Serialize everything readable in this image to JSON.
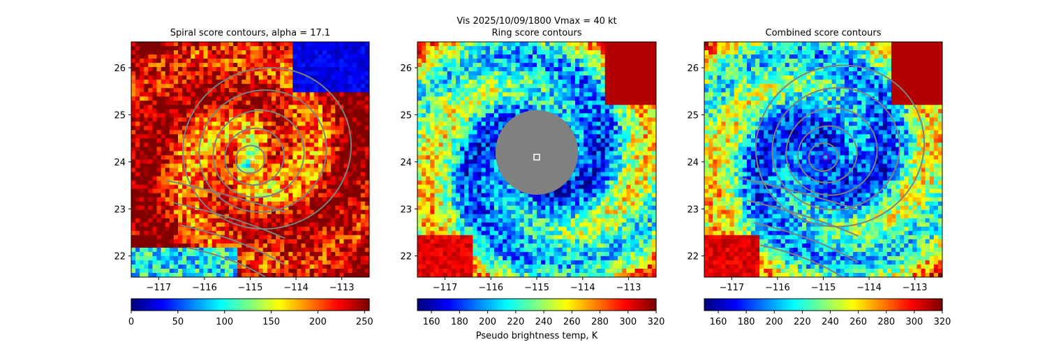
{
  "figure": {
    "suptitle": "Vis  2025/10/09/1800    Vmax = 40 kt"
  },
  "chart_data": [
    {
      "type": "heatmap",
      "title": "Spiral score contours, alpha = 17.1",
      "xlabel": "",
      "ylabel": "",
      "xlim": [
        -117.6,
        -112.4
      ],
      "ylim": [
        21.55,
        26.55
      ],
      "xticks": [
        -117,
        -116,
        -115,
        -114,
        -113
      ],
      "xtick_labels": [
        "−117",
        "−116",
        "−115",
        "−114",
        "−113"
      ],
      "yticks": [
        22,
        23,
        24,
        25,
        26
      ],
      "ytick_labels": [
        "22",
        "23",
        "24",
        "25",
        "26"
      ],
      "colormap": "jet",
      "colorbar": {
        "range": [
          0,
          255
        ],
        "ticks": [
          0,
          50,
          100,
          150,
          200,
          250
        ],
        "tick_labels": [
          "0",
          "50",
          "100",
          "150",
          "200",
          "250"
        ],
        "label": "",
        "reversed": true
      },
      "center": [
        -115.0,
        24.05
      ],
      "marker": {
        "type": "plus",
        "lon": -114.95,
        "lat": 24.05,
        "color": "#ffffff"
      },
      "contour_color": "#808080"
    },
    {
      "type": "heatmap",
      "title": "Ring score contours",
      "xlabel": "",
      "ylabel": "",
      "xlim": [
        -117.6,
        -112.4
      ],
      "ylim": [
        21.55,
        26.55
      ],
      "xticks": [
        -117,
        -116,
        -115,
        -114,
        -113
      ],
      "xtick_labels": [
        "−117",
        "−116",
        "−115",
        "−114",
        "−113"
      ],
      "yticks": [
        22,
        23,
        24,
        25,
        26
      ],
      "ytick_labels": [
        "22",
        "23",
        "24",
        "25",
        "26"
      ],
      "colormap": "jet",
      "colorbar": {
        "range": [
          150,
          320
        ],
        "ticks": [
          160,
          180,
          200,
          220,
          240,
          260,
          280,
          300,
          320
        ],
        "tick_labels": [
          "160",
          "180",
          "200",
          "220",
          "240",
          "260",
          "280",
          "300",
          "320"
        ],
        "label": "Pseudo brightness temp, K",
        "reversed": true
      },
      "center": [
        -115.0,
        24.05
      ],
      "masked_region": {
        "lon": -115.0,
        "lat": 24.2,
        "radius_deg": 0.9,
        "color": "#808080"
      },
      "marker": {
        "type": "square",
        "lon": -115.0,
        "lat": 24.1,
        "color": "#ffffff"
      }
    },
    {
      "type": "heatmap",
      "title": "Combined score contours",
      "xlabel": "",
      "ylabel": "",
      "xlim": [
        -117.6,
        -112.4
      ],
      "ylim": [
        21.55,
        26.55
      ],
      "xticks": [
        -117,
        -116,
        -115,
        -114,
        -113
      ],
      "xtick_labels": [
        "−117",
        "−116",
        "−115",
        "−114",
        "−113"
      ],
      "yticks": [
        22,
        23,
        24,
        25,
        26
      ],
      "ytick_labels": [
        "22",
        "23",
        "24",
        "25",
        "26"
      ],
      "colormap": "jet",
      "colorbar": {
        "range": [
          150,
          320
        ],
        "ticks": [
          160,
          180,
          200,
          220,
          240,
          260,
          280,
          300,
          320
        ],
        "tick_labels": [
          "160",
          "180",
          "200",
          "220",
          "240",
          "260",
          "280",
          "300",
          "320"
        ],
        "label": "",
        "reversed": true
      },
      "center": [
        -115.0,
        24.1
      ],
      "marker": {
        "type": "circle",
        "lon": -114.95,
        "lat": 24.1,
        "color": "#7b00c8"
      },
      "contour_color": "#808080"
    }
  ]
}
